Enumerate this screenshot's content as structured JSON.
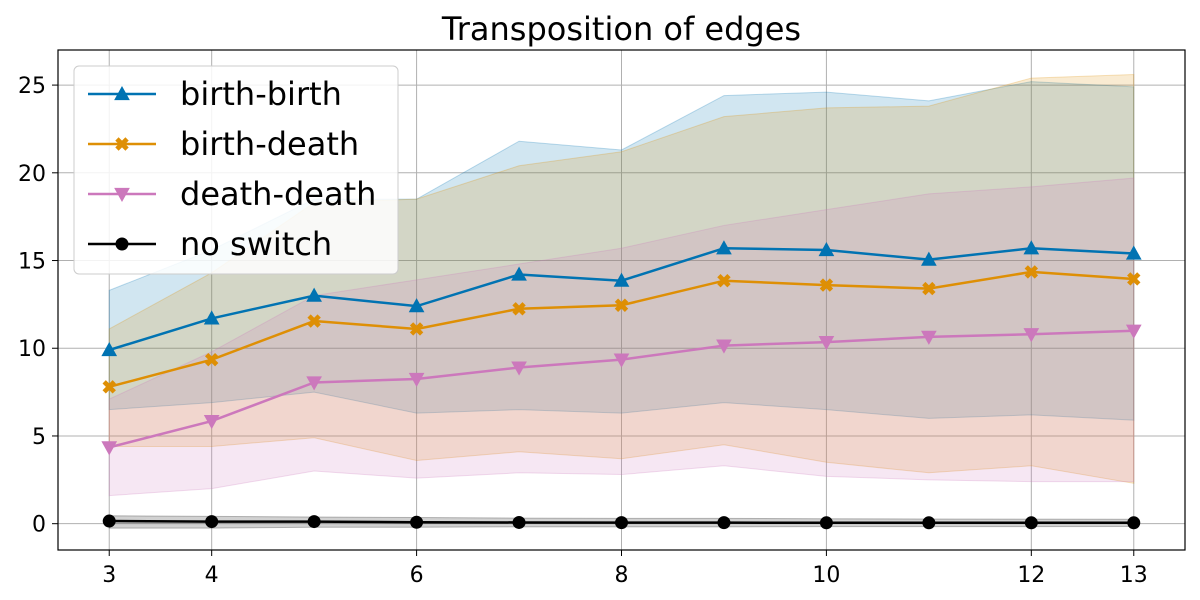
{
  "chart_data": {
    "type": "line",
    "title": "Transposition of edges",
    "xlabel": "",
    "ylabel": "",
    "x": [
      3,
      4,
      5,
      6,
      7,
      8,
      9,
      10,
      11,
      12,
      13
    ],
    "xticks": [
      3,
      4,
      6,
      8,
      10,
      12,
      13
    ],
    "yticks": [
      0,
      5,
      10,
      15,
      20,
      25
    ],
    "xlim": [
      2.5,
      13.5
    ],
    "ylim": [
      -1.5,
      27.0
    ],
    "grid": true,
    "legend_position": "top-left",
    "series": [
      {
        "name": "birth-birth",
        "color": "#0173b2",
        "marker": "triangle-up",
        "values": [
          9.9,
          11.7,
          13.0,
          12.4,
          14.2,
          13.85,
          15.7,
          15.6,
          15.05,
          15.7,
          15.4
        ],
        "upper": [
          13.3,
          15.6,
          18.5,
          18.5,
          21.8,
          21.3,
          24.4,
          24.6,
          24.1,
          25.2,
          24.9
        ],
        "lower": [
          6.5,
          6.9,
          7.5,
          6.3,
          6.5,
          6.3,
          6.9,
          6.5,
          6.0,
          6.2,
          5.9
        ]
      },
      {
        "name": "birth-death",
        "color": "#de8f05",
        "marker": "x-filled",
        "values": [
          7.8,
          9.35,
          11.55,
          11.1,
          12.25,
          12.45,
          13.85,
          13.6,
          13.4,
          14.35,
          13.95
        ],
        "upper": [
          11.1,
          14.3,
          18.3,
          18.5,
          20.4,
          21.2,
          23.2,
          23.7,
          23.8,
          25.4,
          25.6
        ],
        "lower": [
          4.4,
          4.4,
          4.9,
          3.6,
          4.1,
          3.7,
          4.5,
          3.5,
          2.9,
          3.3,
          2.3
        ]
      },
      {
        "name": "death-death",
        "color": "#cc78bc",
        "marker": "triangle-down",
        "values": [
          4.35,
          5.85,
          8.05,
          8.25,
          8.9,
          9.35,
          10.15,
          10.35,
          10.65,
          10.8,
          11.0
        ],
        "upper": [
          7.1,
          9.8,
          13.0,
          13.9,
          14.8,
          15.7,
          17.0,
          17.9,
          18.8,
          19.2,
          19.7
        ],
        "lower": [
          1.6,
          2.0,
          3.0,
          2.6,
          2.9,
          2.8,
          3.3,
          2.7,
          2.5,
          2.4,
          2.4
        ]
      },
      {
        "name": "no switch",
        "color": "#000000",
        "marker": "circle",
        "values": [
          0.15,
          0.12,
          0.12,
          0.08,
          0.07,
          0.06,
          0.06,
          0.05,
          0.05,
          0.05,
          0.05
        ],
        "upper": [
          0.45,
          0.42,
          0.38,
          0.35,
          0.32,
          0.3,
          0.3,
          0.28,
          0.27,
          0.26,
          0.25
        ],
        "lower": [
          -0.25,
          -0.25,
          -0.2,
          -0.2,
          -0.18,
          -0.18,
          -0.18,
          -0.17,
          -0.17,
          -0.17,
          -0.16
        ]
      }
    ]
  }
}
